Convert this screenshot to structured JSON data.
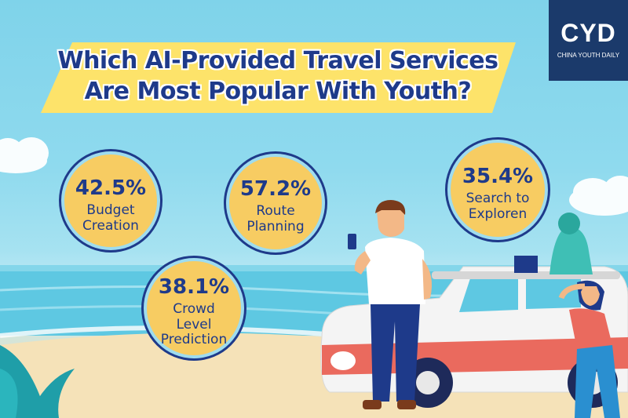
{
  "title": {
    "line1": "Which AI-Provided Travel Services",
    "line2": "Are Most Popular With Youth?"
  },
  "logo": {
    "main": "CYD",
    "sub": "CHINA YOUTH DAILY"
  },
  "stats": [
    {
      "value": "42.5%",
      "label_lines": [
        "Budget",
        "Creation"
      ]
    },
    {
      "value": "57.2%",
      "label_lines": [
        "Route",
        "Planning"
      ]
    },
    {
      "value": "35.4%",
      "label_lines": [
        "Search to",
        "Exploren"
      ]
    },
    {
      "value": "38.1%",
      "label_lines": [
        "Crowd",
        "Level",
        "Prediction"
      ]
    }
  ],
  "colors": {
    "sky": "#8fdaee",
    "banner": "#fde36a",
    "circle": "#f7cc62",
    "navy": "#1e3a8a",
    "logo_bg": "#1b3a6b",
    "car_red": "#ea6a5e"
  }
}
